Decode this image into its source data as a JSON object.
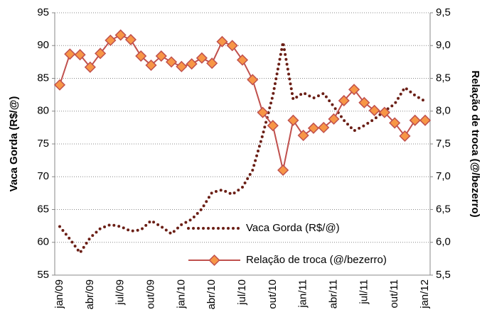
{
  "chart_data": {
    "type": "line",
    "categories": [
      "jan/09",
      null,
      null,
      "abr/09",
      null,
      null,
      "jul/09",
      null,
      null,
      "out/09",
      null,
      null,
      "jan/10",
      null,
      null,
      "abr/10",
      null,
      null,
      "jul/10",
      null,
      null,
      "out/10",
      null,
      null,
      "jan/11",
      null,
      null,
      "abr/11",
      null,
      null,
      "jul/11",
      null,
      null,
      "out/11",
      null,
      null,
      "jan/12"
    ],
    "y_label": "Vaca Gorda (R$/@)",
    "y2_label": "Relação de troca (@/bezerro)",
    "ylim": [
      55,
      95
    ],
    "yticks": [
      55,
      60,
      65,
      70,
      75,
      80,
      85,
      90,
      95
    ],
    "y2lim": [
      5.5,
      9.5
    ],
    "y2ticks": [
      {
        "value": 5.5,
        "label": "5,5"
      },
      {
        "value": 6.0,
        "label": "6,0"
      },
      {
        "value": 6.5,
        "label": "6,5"
      },
      {
        "value": 7.0,
        "label": "7,0"
      },
      {
        "value": 7.5,
        "label": "7,5"
      },
      {
        "value": 8.0,
        "label": "8,0"
      },
      {
        "value": 8.5,
        "label": "8,5"
      },
      {
        "value": 9.0,
        "label": "9,0"
      },
      {
        "value": 9.5,
        "label": "9,5"
      }
    ],
    "grid": true,
    "series": [
      {
        "name": "Vaca Gorda (R$/@)",
        "color": "#6b1f16",
        "style": "dotted",
        "values": [
          62.4,
          60.5,
          58.4,
          60.7,
          62.1,
          62.7,
          62.4,
          61.7,
          61.9,
          63.3,
          62.4,
          61.3,
          62.7,
          63.5,
          65.1,
          67.6,
          68.0,
          67.3,
          68.4,
          71.0,
          76.4,
          82.4,
          90.5,
          81.8,
          82.8,
          82.0,
          82.7,
          80.7,
          78.6,
          77.0,
          77.8,
          78.8,
          80.0,
          81.1,
          83.6,
          82.4,
          81.5
        ]
      },
      {
        "name": "Relação de troca (@/bezerro)",
        "color": "#c0504d",
        "marker_color": "#f79646",
        "axis": "y2",
        "values": [
          8.4,
          8.87,
          8.86,
          8.67,
          8.88,
          9.08,
          9.16,
          9.09,
          8.84,
          8.7,
          8.84,
          8.75,
          8.68,
          8.72,
          8.81,
          8.73,
          9.06,
          9.0,
          8.78,
          8.48,
          7.98,
          7.78,
          7.1,
          7.86,
          7.63,
          7.74,
          7.75,
          7.88,
          8.16,
          8.33,
          8.13,
          8.01,
          7.98,
          7.82,
          7.62,
          7.86,
          7.86
        ]
      }
    ]
  }
}
